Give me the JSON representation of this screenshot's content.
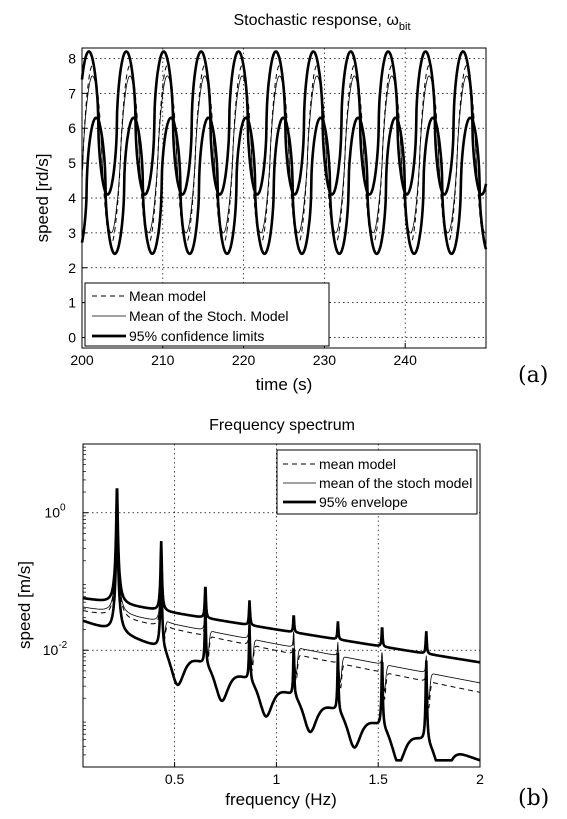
{
  "chart_data": [
    {
      "type": "line",
      "title": "Stochastic response, ω",
      "title_subscript": "bit",
      "xlabel": "time (s)",
      "ylabel": "speed [rd/s]",
      "xlim": [
        200,
        250
      ],
      "ylim": [
        -0.3,
        8.3
      ],
      "xticks": [
        "200",
        "210",
        "220",
        "230",
        "240"
      ],
      "yticks": [
        "0",
        "1",
        "2",
        "3",
        "4",
        "5",
        "6",
        "7",
        "8"
      ],
      "grid": true,
      "legend_position": "bottom-left",
      "panel_tag": "(a)",
      "period_s": 4.63,
      "series": [
        {
          "name": "Mean model",
          "style": "dashed",
          "min": 2.7,
          "max": 7.8
        },
        {
          "name": "Mean of the Stoch. Model",
          "style": "thin",
          "min": 3.0,
          "max": 7.5
        },
        {
          "name": "95% confidence limits",
          "style": "thick",
          "lower_min": 2.4,
          "lower_max": 6.3,
          "upper_min": 4.1,
          "upper_max": 8.2
        }
      ]
    },
    {
      "type": "line",
      "title": "Frequency spectrum",
      "xlabel": "frequency (Hz)",
      "ylabel": "speed [m/s]",
      "xlim": [
        0.05,
        2
      ],
      "yscale": "log",
      "ylim": [
        0.0002,
        10
      ],
      "xticks": [
        "0.5",
        "1",
        "1.5",
        "2"
      ],
      "yticks": [
        "10^0",
        "10^-2"
      ],
      "grid": true,
      "legend_position": "top-right",
      "panel_tag": "(b)",
      "peak_frequencies_hz": [
        0.217,
        0.434,
        0.651,
        0.868,
        1.085,
        1.302,
        1.519,
        1.736
      ],
      "series": [
        {
          "name": "mean model",
          "style": "dashed",
          "peak_amplitudes": [
            2.4,
            0.28,
            0.045,
            0.025,
            0.01,
            0.006,
            0.004,
            0.004
          ]
        },
        {
          "name": "mean of the stoch model",
          "style": "thin",
          "peak_amplitudes": [
            2.4,
            0.3,
            0.05,
            0.028,
            0.012,
            0.007,
            0.005,
            0.005
          ]
        },
        {
          "name": "95% envelope",
          "style": "thick",
          "peak_amplitudes": [
            2.5,
            0.35,
            0.06,
            0.03,
            0.015,
            0.012,
            0.011,
            0.01
          ]
        }
      ]
    }
  ]
}
